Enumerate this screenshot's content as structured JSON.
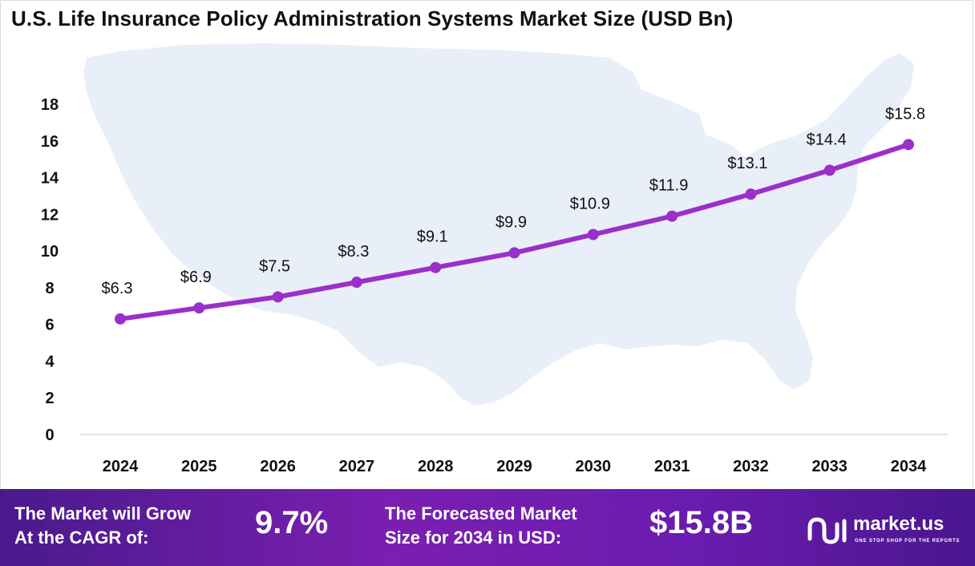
{
  "title": "U.S. Life Insurance Policy Administration Systems Market Size (USD Bn)",
  "chart_data": {
    "type": "line",
    "categories": [
      "2024",
      "2025",
      "2026",
      "2027",
      "2028",
      "2029",
      "2030",
      "2031",
      "2032",
      "2033",
      "2034"
    ],
    "values": [
      6.3,
      6.9,
      7.5,
      8.3,
      9.1,
      9.9,
      10.9,
      11.9,
      13.1,
      14.4,
      15.8
    ],
    "data_labels": [
      "$6.3",
      "$6.9",
      "$7.5",
      "$8.3",
      "$9.1",
      "$9.9",
      "$10.9",
      "$11.9",
      "$13.1",
      "$14.4",
      "$15.8"
    ],
    "y_ticks": [
      "0",
      "2",
      "4",
      "6",
      "8",
      "10",
      "12",
      "14",
      "16",
      "18"
    ],
    "ylim": [
      0,
      18
    ],
    "grid": false,
    "line_color": "#9b2fc9",
    "background_shape": "us-map-silhouette"
  },
  "footer": {
    "cagr_label": "The Market will Grow\nAt the CAGR of:",
    "cagr_value": "9.7%",
    "forecast_label": "The Forecasted Market\nSize for 2034 in USD:",
    "forecast_value": "$15.8B",
    "brand_name": "market.us",
    "brand_tagline": "ONE STOP SHOP FOR THE REPORTS"
  }
}
